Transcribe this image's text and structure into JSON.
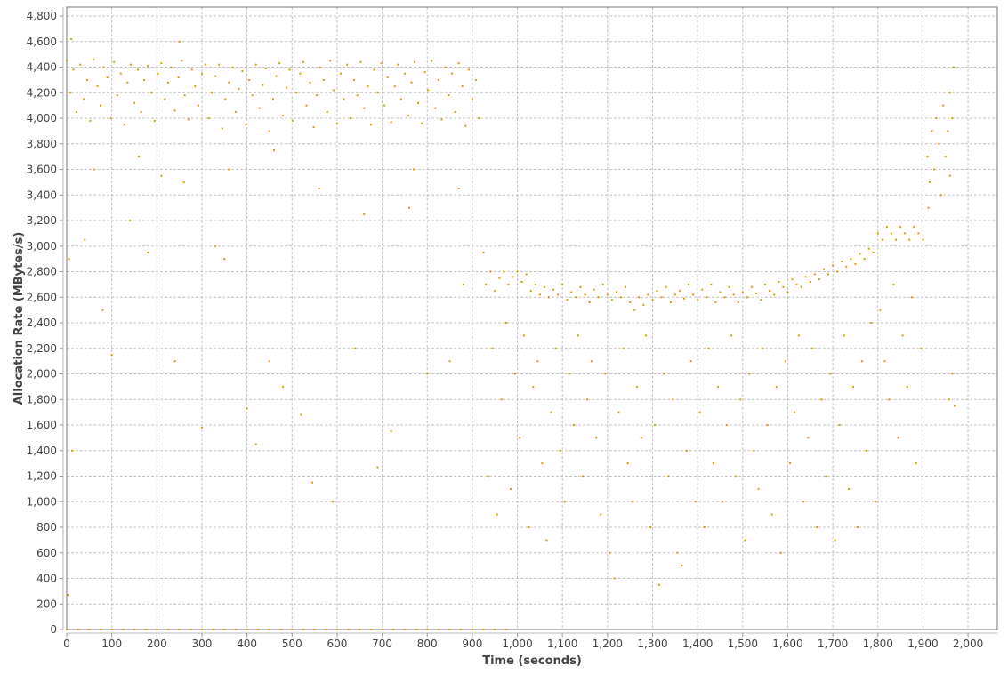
{
  "chart_data": {
    "type": "scatter",
    "title": "",
    "xlabel": "Time (seconds)",
    "ylabel": "Allocation Rate (MBytes/s)",
    "xlim": [
      0,
      2065
    ],
    "ylim": [
      0,
      4870
    ],
    "xticks": [
      0,
      100,
      200,
      300,
      400,
      500,
      600,
      700,
      800,
      900,
      1000,
      1100,
      1200,
      1300,
      1400,
      1500,
      1600,
      1700,
      1800,
      1900,
      2000
    ],
    "xtick_labels": [
      "0",
      "100",
      "200",
      "300",
      "400",
      "500",
      "600",
      "700",
      "800",
      "900",
      "1,000",
      "1,100",
      "1,200",
      "1,300",
      "1,400",
      "1,500",
      "1,600",
      "1,700",
      "1,800",
      "1,900",
      "2,000"
    ],
    "yticks": [
      0,
      200,
      400,
      600,
      800,
      1000,
      1200,
      1400,
      1600,
      1800,
      2000,
      2200,
      2400,
      2600,
      2800,
      3000,
      3200,
      3400,
      3600,
      3800,
      4000,
      4200,
      4400,
      4600,
      4800
    ],
    "ytick_labels": [
      "0",
      "200",
      "400",
      "600",
      "800",
      "1,000",
      "1,200",
      "1,400",
      "1,600",
      "1,800",
      "2,000",
      "2,200",
      "2,400",
      "2,600",
      "2,800",
      "3,000",
      "3,200",
      "3,400",
      "3,600",
      "3,800",
      "4,000",
      "4,200",
      "4,400",
      "4,600",
      "4,800"
    ],
    "grid": true,
    "legend": "none",
    "point_color": "#d4a000",
    "points": [
      [
        0,
        4450
      ],
      [
        8,
        4200
      ],
      [
        15,
        4380
      ],
      [
        22,
        4050
      ],
      [
        30,
        4420
      ],
      [
        38,
        4150
      ],
      [
        45,
        4300
      ],
      [
        52,
        3980
      ],
      [
        60,
        4460
      ],
      [
        68,
        4250
      ],
      [
        75,
        4100
      ],
      [
        82,
        4400
      ],
      [
        90,
        4320
      ],
      [
        98,
        4000
      ],
      [
        105,
        4440
      ],
      [
        112,
        4180
      ],
      [
        120,
        4350
      ],
      [
        128,
        3950
      ],
      [
        135,
        4280
      ],
      [
        142,
        4420
      ],
      [
        150,
        4120
      ],
      [
        158,
        4380
      ],
      [
        165,
        4050
      ],
      [
        172,
        4300
      ],
      [
        180,
        4410
      ],
      [
        188,
        4200
      ],
      [
        195,
        3980
      ],
      [
        202,
        4350
      ],
      [
        210,
        4430
      ],
      [
        218,
        4150
      ],
      [
        225,
        4280
      ],
      [
        232,
        4400
      ],
      [
        240,
        4060
      ],
      [
        248,
        4320
      ],
      [
        255,
        4450
      ],
      [
        262,
        4180
      ],
      [
        270,
        3990
      ],
      [
        278,
        4380
      ],
      [
        285,
        4250
      ],
      [
        292,
        4100
      ],
      [
        300,
        4350
      ],
      [
        308,
        4420
      ],
      [
        315,
        4000
      ],
      [
        322,
        4200
      ],
      [
        330,
        4330
      ],
      [
        338,
        4420
      ],
      [
        345,
        3920
      ],
      [
        352,
        4150
      ],
      [
        360,
        4280
      ],
      [
        368,
        4400
      ],
      [
        375,
        4050
      ],
      [
        382,
        4230
      ],
      [
        390,
        4370
      ],
      [
        398,
        3950
      ],
      [
        405,
        4300
      ],
      [
        412,
        4180
      ],
      [
        420,
        4420
      ],
      [
        428,
        4080
      ],
      [
        435,
        4260
      ],
      [
        442,
        4390
      ],
      [
        450,
        3900
      ],
      [
        458,
        4150
      ],
      [
        465,
        4330
      ],
      [
        472,
        4430
      ],
      [
        480,
        4020
      ],
      [
        488,
        4240
      ],
      [
        495,
        4380
      ],
      [
        502,
        3980
      ],
      [
        510,
        4200
      ],
      [
        518,
        4350
      ],
      [
        525,
        4440
      ],
      [
        532,
        4100
      ],
      [
        540,
        4280
      ],
      [
        548,
        3930
      ],
      [
        555,
        4180
      ],
      [
        562,
        4400
      ],
      [
        570,
        4300
      ],
      [
        578,
        4050
      ],
      [
        585,
        4450
      ],
      [
        592,
        4220
      ],
      [
        600,
        3960
      ],
      [
        608,
        4350
      ],
      [
        615,
        4150
      ],
      [
        622,
        4420
      ],
      [
        630,
        4000
      ],
      [
        638,
        4300
      ],
      [
        645,
        4180
      ],
      [
        652,
        4440
      ],
      [
        660,
        4080
      ],
      [
        668,
        4250
      ],
      [
        675,
        3950
      ],
      [
        682,
        4380
      ],
      [
        690,
        4200
      ],
      [
        698,
        4430
      ],
      [
        705,
        4100
      ],
      [
        712,
        4320
      ],
      [
        720,
        3970
      ],
      [
        728,
        4250
      ],
      [
        735,
        4420
      ],
      [
        742,
        4150
      ],
      [
        750,
        4350
      ],
      [
        758,
        4020
      ],
      [
        765,
        4280
      ],
      [
        772,
        4440
      ],
      [
        780,
        4120
      ],
      [
        788,
        3960
      ],
      [
        795,
        4360
      ],
      [
        802,
        4220
      ],
      [
        810,
        4450
      ],
      [
        818,
        4080
      ],
      [
        825,
        4300
      ],
      [
        832,
        3990
      ],
      [
        840,
        4400
      ],
      [
        848,
        4180
      ],
      [
        855,
        4350
      ],
      [
        862,
        4050
      ],
      [
        870,
        4430
      ],
      [
        878,
        4250
      ],
      [
        885,
        3940
      ],
      [
        892,
        4380
      ],
      [
        900,
        4150
      ],
      [
        908,
        4300
      ],
      [
        915,
        4000
      ],
      [
        5,
        2900
      ],
      [
        12,
        1400
      ],
      [
        3,
        270
      ],
      [
        40,
        3050
      ],
      [
        80,
        2500
      ],
      [
        100,
        2150
      ],
      [
        140,
        3200
      ],
      [
        180,
        2950
      ],
      [
        210,
        3550
      ],
      [
        240,
        2100
      ],
      [
        300,
        1580
      ],
      [
        330,
        3000
      ],
      [
        350,
        2900
      ],
      [
        400,
        1730
      ],
      [
        420,
        1450
      ],
      [
        450,
        2100
      ],
      [
        480,
        1900
      ],
      [
        520,
        1680
      ],
      [
        545,
        1150
      ],
      [
        590,
        1000
      ],
      [
        640,
        2200
      ],
      [
        690,
        1270
      ],
      [
        720,
        1550
      ],
      [
        760,
        3300
      ],
      [
        800,
        2000
      ],
      [
        850,
        2100
      ],
      [
        880,
        2700
      ],
      [
        60,
        3600
      ],
      [
        160,
        3700
      ],
      [
        260,
        3500
      ],
      [
        360,
        3600
      ],
      [
        460,
        3750
      ],
      [
        560,
        3450
      ],
      [
        660,
        3250
      ],
      [
        770,
        3600
      ],
      [
        870,
        3450
      ],
      [
        10,
        4620
      ],
      [
        250,
        4600
      ],
      [
        925,
        2950
      ],
      [
        930,
        2700
      ],
      [
        940,
        2800
      ],
      [
        950,
        2650
      ],
      [
        960,
        2750
      ],
      [
        970,
        2800
      ],
      [
        980,
        2700
      ],
      [
        990,
        2760
      ],
      [
        1000,
        2800
      ],
      [
        1010,
        2720
      ],
      [
        1020,
        2780
      ],
      [
        1030,
        2650
      ],
      [
        1040,
        2700
      ],
      [
        1050,
        2620
      ],
      [
        1060,
        2680
      ],
      [
        1070,
        2600
      ],
      [
        1080,
        2660
      ],
      [
        1090,
        2620
      ],
      [
        1100,
        2700
      ],
      [
        1110,
        2580
      ],
      [
        1120,
        2640
      ],
      [
        1130,
        2600
      ],
      [
        1140,
        2680
      ],
      [
        1150,
        2620
      ],
      [
        1160,
        2560
      ],
      [
        1170,
        2660
      ],
      [
        1180,
        2600
      ],
      [
        1190,
        2700
      ],
      [
        1200,
        2620
      ],
      [
        1210,
        2580
      ],
      [
        1220,
        2640
      ],
      [
        1230,
        2600
      ],
      [
        1240,
        2680
      ],
      [
        1250,
        2560
      ],
      [
        1260,
        2500
      ],
      [
        1270,
        2600
      ],
      [
        1280,
        2540
      ],
      [
        1290,
        2620
      ],
      [
        1300,
        2580
      ],
      [
        1310,
        2650
      ],
      [
        1320,
        2600
      ],
      [
        1330,
        2680
      ],
      [
        1340,
        2560
      ],
      [
        1350,
        2620
      ],
      [
        1360,
        2650
      ],
      [
        1370,
        2590
      ],
      [
        1380,
        2700
      ],
      [
        1390,
        2620
      ],
      [
        1400,
        2580
      ],
      [
        1410,
        2660
      ],
      [
        1420,
        2600
      ],
      [
        1430,
        2700
      ],
      [
        1440,
        2560
      ],
      [
        1450,
        2640
      ],
      [
        1460,
        2600
      ],
      [
        1470,
        2680
      ],
      [
        1480,
        2620
      ],
      [
        1490,
        2560
      ],
      [
        1500,
        2640
      ],
      [
        1510,
        2600
      ],
      [
        1520,
        2680
      ],
      [
        1530,
        2630
      ],
      [
        1540,
        2580
      ],
      [
        1550,
        2700
      ],
      [
        1560,
        2650
      ],
      [
        1570,
        2620
      ],
      [
        1580,
        2720
      ],
      [
        1590,
        2680
      ],
      [
        1600,
        2640
      ],
      [
        1610,
        2740
      ],
      [
        1620,
        2700
      ],
      [
        1630,
        2680
      ],
      [
        1640,
        2760
      ],
      [
        1650,
        2720
      ],
      [
        1660,
        2780
      ],
      [
        1670,
        2740
      ],
      [
        1680,
        2820
      ],
      [
        1690,
        2780
      ],
      [
        1700,
        2850
      ],
      [
        1710,
        2800
      ],
      [
        1720,
        2880
      ],
      [
        1730,
        2840
      ],
      [
        1740,
        2900
      ],
      [
        1750,
        2860
      ],
      [
        1760,
        2940
      ],
      [
        1770,
        2900
      ],
      [
        1780,
        2980
      ],
      [
        1790,
        2950
      ],
      [
        935,
        1200
      ],
      [
        945,
        2200
      ],
      [
        955,
        900
      ],
      [
        965,
        1800
      ],
      [
        975,
        2400
      ],
      [
        985,
        1100
      ],
      [
        995,
        2000
      ],
      [
        1005,
        1500
      ],
      [
        1015,
        2300
      ],
      [
        1025,
        800
      ],
      [
        1035,
        1900
      ],
      [
        1045,
        2100
      ],
      [
        1055,
        1300
      ],
      [
        1065,
        700
      ],
      [
        1075,
        1700
      ],
      [
        1085,
        2200
      ],
      [
        1095,
        1400
      ],
      [
        1105,
        1000
      ],
      [
        1115,
        2000
      ],
      [
        1125,
        1600
      ],
      [
        1135,
        2300
      ],
      [
        1145,
        1200
      ],
      [
        1155,
        1800
      ],
      [
        1165,
        2100
      ],
      [
        1175,
        1500
      ],
      [
        1185,
        900
      ],
      [
        1195,
        2000
      ],
      [
        1205,
        600
      ],
      [
        1215,
        400
      ],
      [
        1225,
        1700
      ],
      [
        1235,
        2200
      ],
      [
        1245,
        1300
      ],
      [
        1255,
        1000
      ],
      [
        1265,
        1900
      ],
      [
        1275,
        1500
      ],
      [
        1285,
        2300
      ],
      [
        1295,
        800
      ],
      [
        1305,
        1600
      ],
      [
        1315,
        350
      ],
      [
        1325,
        2000
      ],
      [
        1335,
        1200
      ],
      [
        1345,
        1800
      ],
      [
        1355,
        600
      ],
      [
        1365,
        500
      ],
      [
        1375,
        1400
      ],
      [
        1385,
        2100
      ],
      [
        1395,
        1000
      ],
      [
        1405,
        1700
      ],
      [
        1415,
        800
      ],
      [
        1425,
        2200
      ],
      [
        1435,
        1300
      ],
      [
        1445,
        1900
      ],
      [
        1455,
        1000
      ],
      [
        1465,
        1600
      ],
      [
        1475,
        2300
      ],
      [
        1485,
        1200
      ],
      [
        1495,
        1800
      ],
      [
        1505,
        700
      ],
      [
        1515,
        2000
      ],
      [
        1525,
        1400
      ],
      [
        1535,
        1100
      ],
      [
        1545,
        2200
      ],
      [
        1555,
        1600
      ],
      [
        1565,
        900
      ],
      [
        1575,
        1900
      ],
      [
        1585,
        600
      ],
      [
        1595,
        2100
      ],
      [
        1605,
        1300
      ],
      [
        1615,
        1700
      ],
      [
        1625,
        2300
      ],
      [
        1635,
        1000
      ],
      [
        1645,
        1500
      ],
      [
        1655,
        2200
      ],
      [
        1665,
        800
      ],
      [
        1675,
        1800
      ],
      [
        1685,
        1200
      ],
      [
        1695,
        2000
      ],
      [
        1705,
        700
      ],
      [
        1715,
        1600
      ],
      [
        1725,
        2300
      ],
      [
        1735,
        1100
      ],
      [
        1745,
        1900
      ],
      [
        1755,
        800
      ],
      [
        1765,
        2100
      ],
      [
        1775,
        1400
      ],
      [
        1785,
        2400
      ],
      [
        1795,
        1000
      ],
      [
        1800,
        3100
      ],
      [
        1810,
        3050
      ],
      [
        1820,
        3150
      ],
      [
        1830,
        3100
      ],
      [
        1840,
        3050
      ],
      [
        1850,
        3150
      ],
      [
        1860,
        3100
      ],
      [
        1870,
        3050
      ],
      [
        1880,
        3150
      ],
      [
        1890,
        3100
      ],
      [
        1900,
        3050
      ],
      [
        1805,
        2500
      ],
      [
        1815,
        2100
      ],
      [
        1825,
        1800
      ],
      [
        1835,
        2700
      ],
      [
        1845,
        1500
      ],
      [
        1855,
        2300
      ],
      [
        1865,
        1900
      ],
      [
        1875,
        2600
      ],
      [
        1885,
        1300
      ],
      [
        1895,
        2200
      ],
      [
        1910,
        3700
      ],
      [
        1915,
        3500
      ],
      [
        1920,
        3900
      ],
      [
        1925,
        3600
      ],
      [
        1930,
        4000
      ],
      [
        1935,
        3800
      ],
      [
        1940,
        3400
      ],
      [
        1945,
        4100
      ],
      [
        1950,
        3700
      ],
      [
        1955,
        3900
      ],
      [
        1960,
        4200
      ],
      [
        1965,
        4000
      ],
      [
        1968,
        4400
      ],
      [
        1912,
        3300
      ],
      [
        1958,
        1800
      ],
      [
        1965,
        2000
      ],
      [
        1970,
        1750
      ],
      [
        1960,
        3550
      ],
      [
        0,
        0
      ],
      [
        25,
        0
      ],
      [
        50,
        0
      ],
      [
        75,
        0
      ],
      [
        100,
        0
      ],
      [
        125,
        0
      ],
      [
        150,
        0
      ],
      [
        175,
        0
      ],
      [
        200,
        0
      ],
      [
        225,
        0
      ],
      [
        250,
        0
      ],
      [
        275,
        0
      ],
      [
        300,
        0
      ],
      [
        325,
        0
      ],
      [
        350,
        0
      ],
      [
        375,
        0
      ],
      [
        400,
        0
      ],
      [
        425,
        0
      ],
      [
        450,
        0
      ],
      [
        475,
        0
      ],
      [
        500,
        0
      ],
      [
        525,
        0
      ],
      [
        550,
        0
      ],
      [
        575,
        0
      ],
      [
        600,
        0
      ],
      [
        625,
        0
      ],
      [
        650,
        0
      ],
      [
        675,
        0
      ],
      [
        700,
        0
      ],
      [
        725,
        0
      ],
      [
        750,
        0
      ],
      [
        775,
        0
      ],
      [
        800,
        0
      ],
      [
        825,
        0
      ],
      [
        850,
        0
      ],
      [
        875,
        0
      ],
      [
        900,
        0
      ],
      [
        925,
        0
      ],
      [
        950,
        0
      ],
      [
        975,
        0
      ]
    ]
  }
}
